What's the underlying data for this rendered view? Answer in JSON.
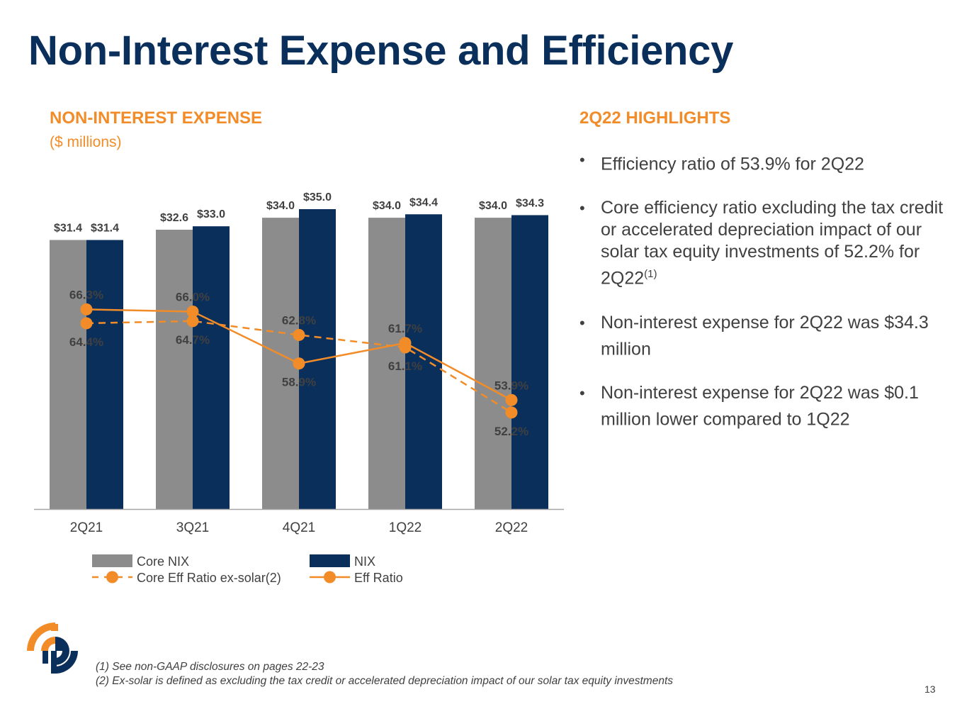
{
  "slide": {
    "title": "Non-Interest Expense and Efficiency",
    "chart_heading": "NON-INTEREST EXPENSE",
    "chart_subheading": "($ millions)",
    "page_number": "13"
  },
  "highlights": {
    "heading": "2Q22 HIGHLIGHTS",
    "bullets": [
      {
        "text": "Efficiency ratio of 53.9% for 2Q22",
        "sup": ""
      },
      {
        "text": "Core efficiency ratio excluding the tax credit or accelerated depreciation impact of our solar tax equity investments of 52.2% for 2Q22",
        "sup": "(1)"
      },
      {
        "text": "Non-interest expense for 2Q22 was $34.3 million",
        "sup": ""
      },
      {
        "text": "Non-interest expense for 2Q22 was $0.1 million lower compared to 1Q22",
        "sup": ""
      }
    ]
  },
  "footnotes": {
    "note1": "(1) See non-GAAP disclosures on pages 22-23",
    "note2": "(2) Ex-solar is defined as excluding the tax credit or accelerated depreciation impact of our solar tax equity investments"
  },
  "colors": {
    "core_nix": "#8c8c8c",
    "nix": "#0b2f5b",
    "orange": "#f28c28",
    "title": "#0b2f5b"
  },
  "chart_data": {
    "type": "bar",
    "categories": [
      "2Q21",
      "3Q21",
      "4Q21",
      "1Q22",
      "2Q22"
    ],
    "bar_series": [
      {
        "name": "Core NIX",
        "values": [
          31.4,
          32.6,
          34.0,
          34.0,
          34.0
        ],
        "labels": [
          "$31.4",
          "$32.6",
          "$34.0",
          "$34.0",
          "$34.0"
        ]
      },
      {
        "name": "NIX",
        "values": [
          31.4,
          33.0,
          35.0,
          34.4,
          34.3
        ],
        "labels": [
          "$31.4",
          "$33.0",
          "$35.0",
          "$34.4",
          "$34.3"
        ]
      }
    ],
    "line_series": [
      {
        "name": "Core Eff Ratio ex-solar(2)",
        "style": "dashed",
        "values": [
          64.4,
          64.7,
          62.8,
          61.1,
          52.2
        ],
        "labels": [
          "64.4%",
          "64.7%",
          "62.8%",
          "61.1%",
          "52.2%"
        ]
      },
      {
        "name": "Eff Ratio",
        "style": "solid",
        "values": [
          66.3,
          66.0,
          58.9,
          61.7,
          53.9
        ],
        "labels": [
          "66.3%",
          "66.0%",
          "58.9%",
          "61.7%",
          "53.9%"
        ]
      }
    ],
    "bar_ylim": [
      0,
      35
    ],
    "ratio_ylim": [
      39,
      80
    ],
    "legend_position": "bottom",
    "grid": false
  }
}
